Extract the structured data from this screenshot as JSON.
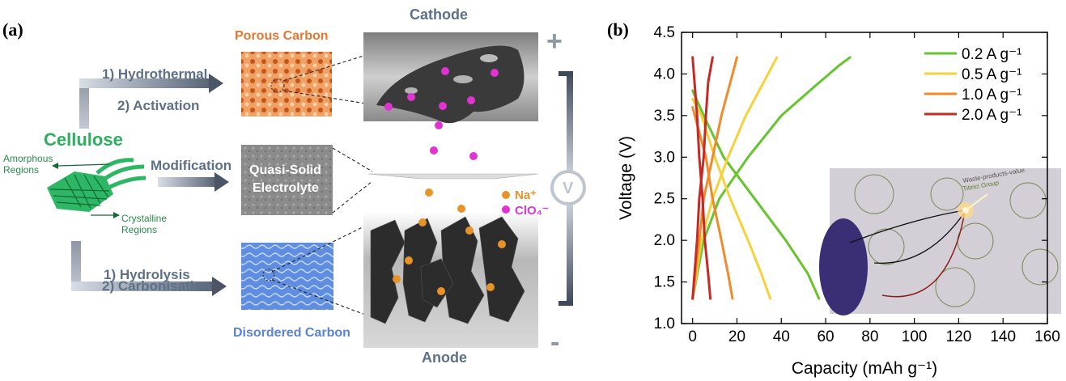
{
  "panel_a": {
    "label": "(a)",
    "cellulose": "Cellulose",
    "amorphous": "Amorphous Regions",
    "crystalline": "Crystalline Regions",
    "top_path": {
      "step1": "1) Hydrothermal",
      "step2": "2) Activation"
    },
    "middle_path": "Modification",
    "bottom_path": {
      "step1": "1) Hydrolysis",
      "step2": "2) Carbonisation"
    },
    "porous_carbon": "Porous Carbon",
    "quasi_solid_1": "Quasi-Solid",
    "quasi_solid_2": "Electrolyte",
    "disordered_carbon": "Disordered Carbon",
    "cathode": "Cathode",
    "anode": "Anode",
    "plus": "+",
    "minus": "-",
    "voltmeter": "V",
    "legend_na": "Na⁺",
    "legend_clo4": "ClO₄⁻",
    "colors": {
      "na": "#e8922a",
      "clo4": "#e033d2",
      "porous": "#e8762e",
      "disordered": "#5b83d4",
      "accent": "#2fae5f"
    }
  },
  "panel_b": {
    "label": "(b)",
    "inset_text": [
      "Waste-products-value",
      "Titirici Group"
    ]
  },
  "chart_data": {
    "type": "line",
    "xlabel": "Capacity (mAh g⁻¹)",
    "ylabel": "Voltage (V)",
    "xlim": [
      -5,
      160
    ],
    "ylim": [
      1.0,
      4.5
    ],
    "xticks": [
      0,
      20,
      40,
      60,
      80,
      100,
      120,
      140,
      160
    ],
    "yticks": [
      1.0,
      1.5,
      2.0,
      2.5,
      3.0,
      3.5,
      4.0,
      4.5
    ],
    "legend_position": "top-right",
    "series": [
      {
        "name": "0.2 A g⁻¹",
        "color": "#66c42f",
        "charge": [
          [
            0,
            1.3
          ],
          [
            5,
            2.0
          ],
          [
            12,
            2.5
          ],
          [
            25,
            3.0
          ],
          [
            40,
            3.5
          ],
          [
            55,
            3.85
          ],
          [
            66,
            4.1
          ],
          [
            71,
            4.2
          ]
        ],
        "discharge": [
          [
            0,
            3.8
          ],
          [
            5,
            3.5
          ],
          [
            14,
            3.0
          ],
          [
            28,
            2.5
          ],
          [
            42,
            2.0
          ],
          [
            52,
            1.6
          ],
          [
            57,
            1.3
          ]
        ]
      },
      {
        "name": "0.5 A g⁻¹",
        "color": "#f5d23c",
        "charge": [
          [
            0,
            1.3
          ],
          [
            4,
            2.0
          ],
          [
            9,
            2.5
          ],
          [
            16,
            3.0
          ],
          [
            24,
            3.5
          ],
          [
            32,
            3.9
          ],
          [
            38,
            4.2
          ]
        ],
        "discharge": [
          [
            0,
            3.7
          ],
          [
            4,
            3.5
          ],
          [
            10,
            3.0
          ],
          [
            17,
            2.5
          ],
          [
            25,
            2.0
          ],
          [
            31,
            1.6
          ],
          [
            35,
            1.3
          ]
        ]
      },
      {
        "name": "1.0 A g⁻¹",
        "color": "#f08a2a",
        "charge": [
          [
            0,
            1.3
          ],
          [
            3,
            2.0
          ],
          [
            5,
            2.5
          ],
          [
            9,
            3.0
          ],
          [
            13,
            3.5
          ],
          [
            17,
            3.9
          ],
          [
            20,
            4.2
          ]
        ],
        "discharge": [
          [
            0,
            3.6
          ],
          [
            3,
            3.3
          ],
          [
            6,
            3.0
          ],
          [
            9,
            2.5
          ],
          [
            13,
            2.0
          ],
          [
            16,
            1.6
          ],
          [
            18,
            1.3
          ]
        ]
      },
      {
        "name": "2.0 A g⁻¹",
        "color": "#c42a26",
        "charge": [
          [
            0,
            1.3
          ],
          [
            2,
            2.0
          ],
          [
            3,
            2.5
          ],
          [
            5,
            3.0
          ],
          [
            6,
            3.5
          ],
          [
            7,
            3.9
          ],
          [
            9,
            4.2
          ]
        ],
        "discharge": [
          [
            0,
            4.2
          ],
          [
            2,
            3.5
          ],
          [
            3,
            3.0
          ],
          [
            4.5,
            2.5
          ],
          [
            5.5,
            2.0
          ],
          [
            7,
            1.6
          ],
          [
            8,
            1.3
          ]
        ]
      }
    ]
  }
}
